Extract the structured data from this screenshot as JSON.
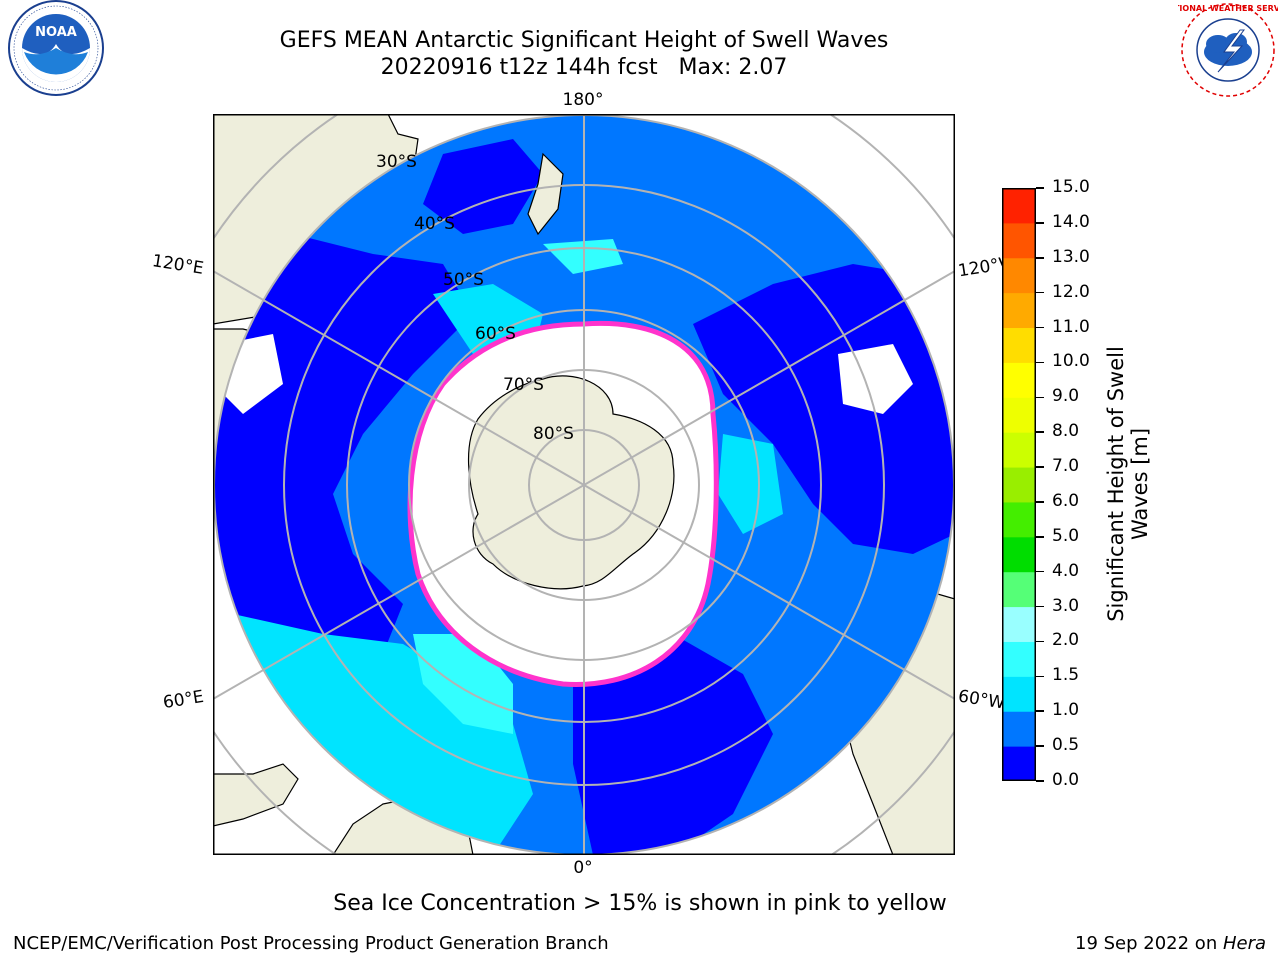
{
  "title": {
    "line1": "GEFS MEAN Antarctic Significant Height of Swell Waves",
    "line2": "20220916 t12z 144h fcst   Max: 2.07"
  },
  "map": {
    "projection": "south-polar-stereographic",
    "longitude_labels": {
      "top": "180°",
      "bottom": "0°",
      "upper_left": "120°E",
      "upper_right": "120°W",
      "lower_left": "60°E",
      "lower_right": "60°W"
    },
    "latitude_labels": [
      "30°S",
      "40°S",
      "50°S",
      "60°S",
      "70°S",
      "80°S"
    ],
    "colors": {
      "land": "#eeeedc",
      "ice": "#ffffff",
      "ice_edge": "#ff33cc",
      "grid": "#b3b3b3"
    }
  },
  "colorbar": {
    "label_line1": "Significant Height of Swell",
    "label_line2": "Waves [m]",
    "ticks": [
      "0.0",
      "0.5",
      "1.0",
      "1.5",
      "2.0",
      "3.0",
      "4.0",
      "5.0",
      "6.0",
      "7.0",
      "8.0",
      "9.0",
      "10.0",
      "11.0",
      "12.0",
      "13.0",
      "14.0",
      "15.0"
    ],
    "colors": [
      "#0000ff",
      "#0077ff",
      "#00e4ff",
      "#33ffff",
      "#99ffff",
      "#55ff77",
      "#00dd00",
      "#44ee00",
      "#99ee00",
      "#ccff00",
      "#eeff00",
      "#ffff00",
      "#ffdd00",
      "#ffaa00",
      "#ff8800",
      "#ff5500",
      "#ff2200"
    ]
  },
  "note": "Sea Ice Concentration > 15% is shown in pink to yellow",
  "footer": {
    "left": "NCEP/EMC/Verification Post Processing Product Generation Branch",
    "right_prefix": "19 Sep 2022 on ",
    "right_machine": "Hera"
  },
  "logos": {
    "left": "NOAA",
    "right": "NATIONAL WEATHER SERVICE"
  }
}
